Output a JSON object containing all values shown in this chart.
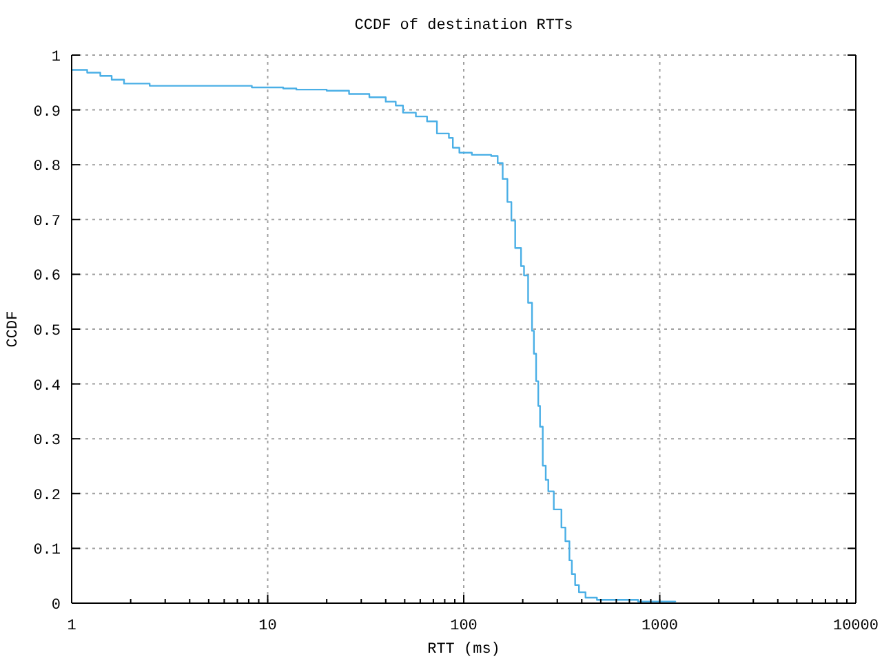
{
  "chart_data": {
    "type": "step",
    "title": "CCDF of destination RTTs",
    "xlabel": "RTT (ms)",
    "ylabel": "CCDF",
    "x": [
      1,
      1.2,
      1.4,
      1.6,
      1.85,
      2.5,
      8.3,
      12,
      14,
      20,
      26,
      33,
      40,
      45,
      49,
      57,
      65,
      73,
      84,
      88,
      95,
      110,
      138,
      149,
      158,
      167,
      175,
      183,
      196,
      203,
      213,
      223,
      228,
      234,
      240,
      245,
      253,
      262,
      270,
      288,
      315,
      330,
      346,
      356,
      370,
      387,
      418,
      478,
      775,
      1200
    ],
    "series": [
      {
        "color": "#4aafe6",
        "values": [
          0.973,
          0.968,
          0.962,
          0.955,
          0.948,
          0.944,
          0.941,
          0.939,
          0.937,
          0.935,
          0.929,
          0.923,
          0.915,
          0.908,
          0.895,
          0.888,
          0.879,
          0.857,
          0.849,
          0.831,
          0.822,
          0.818,
          0.816,
          0.803,
          0.774,
          0.732,
          0.698,
          0.648,
          0.615,
          0.598,
          0.548,
          0.497,
          0.455,
          0.405,
          0.36,
          0.322,
          0.251,
          0.225,
          0.204,
          0.171,
          0.138,
          0.113,
          0.078,
          0.053,
          0.033,
          0.02,
          0.01,
          0.006,
          0.003,
          0.002
        ]
      }
    ],
    "xlim": [
      1,
      10000
    ],
    "xticks": [
      1,
      {
        "value": 2,
        "label": null
      },
      {
        "value": 3,
        "label": null
      },
      {
        "value": 4,
        "label": null
      },
      {
        "value": 5,
        "label": null
      },
      {
        "value": 6,
        "label": null
      },
      {
        "value": 7,
        "label": null
      },
      {
        "value": 8,
        "label": null
      },
      {
        "value": 9,
        "label": null
      },
      10,
      {
        "value": 20,
        "label": null
      },
      {
        "value": 30,
        "label": null
      },
      {
        "value": 40,
        "label": null
      },
      {
        "value": 50,
        "label": null
      },
      {
        "value": 60,
        "label": null
      },
      {
        "value": 70,
        "label": null
      },
      {
        "value": 80,
        "label": null
      },
      {
        "value": 90,
        "label": null
      },
      100,
      {
        "value": 200,
        "label": null
      },
      {
        "value": 300,
        "label": null
      },
      {
        "value": 400,
        "label": null
      },
      {
        "value": 500,
        "label": null
      },
      {
        "value": 600,
        "label": null
      },
      {
        "value": 700,
        "label": null
      },
      {
        "value": 800,
        "label": null
      },
      {
        "value": 900,
        "label": null
      },
      1000,
      {
        "value": 2000,
        "label": null
      },
      {
        "value": 3000,
        "label": null
      },
      {
        "value": 4000,
        "label": null
      },
      {
        "value": 5000,
        "label": null
      },
      {
        "value": 6000,
        "label": null
      },
      {
        "value": 7000,
        "label": null
      },
      {
        "value": 8000,
        "label": null
      },
      {
        "value": 9000,
        "label": null
      },
      10000
    ],
    "ylim": [
      0,
      1
    ],
    "yticks": [
      0,
      0.1,
      0.2,
      0.3,
      0.4,
      0.5,
      0.6,
      0.7,
      0.8,
      0.9,
      1
    ],
    "log": "x",
    "grid": true,
    "line_style": "solid"
  }
}
